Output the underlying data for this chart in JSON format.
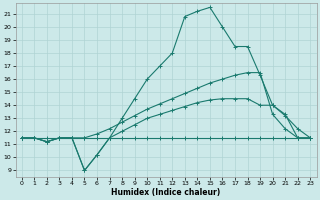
{
  "xlabel": "Humidex (Indice chaleur)",
  "bg_color": "#cce9e9",
  "grid_color": "#b0d4d4",
  "line_color": "#1a7a6e",
  "xlim": [
    -0.5,
    23.5
  ],
  "ylim": [
    8.5,
    21.8
  ],
  "xticks": [
    0,
    1,
    2,
    3,
    4,
    5,
    6,
    7,
    8,
    9,
    10,
    11,
    12,
    13,
    14,
    15,
    16,
    17,
    18,
    19,
    20,
    21,
    22,
    23
  ],
  "yticks": [
    9,
    10,
    11,
    12,
    13,
    14,
    15,
    16,
    17,
    18,
    19,
    20,
    21
  ],
  "lines": [
    {
      "x": [
        0,
        1,
        2,
        3,
        4,
        5,
        6,
        7,
        8,
        9,
        10,
        11,
        12,
        13,
        14,
        15,
        16,
        17,
        18,
        19,
        20,
        21,
        22,
        23
      ],
      "y": [
        11.5,
        11.5,
        11.5,
        11.5,
        11.5,
        11.5,
        11.5,
        11.5,
        11.5,
        11.5,
        11.5,
        11.5,
        11.5,
        11.5,
        11.5,
        11.5,
        11.5,
        11.5,
        11.5,
        11.5,
        11.5,
        11.5,
        11.5,
        11.5
      ]
    },
    {
      "x": [
        0,
        1,
        2,
        3,
        4,
        5,
        6,
        7,
        8,
        9,
        10,
        11,
        12,
        13,
        14,
        15,
        16,
        17,
        18,
        19,
        20,
        21,
        22,
        23
      ],
      "y": [
        11.5,
        11.5,
        11.2,
        11.5,
        11.5,
        9.0,
        10.2,
        11.5,
        12.0,
        12.5,
        13.0,
        13.3,
        13.6,
        13.9,
        14.2,
        14.4,
        14.5,
        14.5,
        14.5,
        14.0,
        14.0,
        13.3,
        11.5,
        11.5
      ]
    },
    {
      "x": [
        0,
        1,
        2,
        3,
        4,
        5,
        6,
        7,
        8,
        9,
        10,
        11,
        12,
        13,
        14,
        15,
        16,
        17,
        18,
        19,
        20,
        21,
        22,
        23
      ],
      "y": [
        11.5,
        11.5,
        11.2,
        11.5,
        11.5,
        11.5,
        11.8,
        12.2,
        12.7,
        13.2,
        13.7,
        14.1,
        14.5,
        14.9,
        15.3,
        15.7,
        16.0,
        16.3,
        16.5,
        16.5,
        13.3,
        12.2,
        11.5,
        11.5
      ]
    },
    {
      "x": [
        0,
        1,
        2,
        3,
        4,
        5,
        6,
        7,
        8,
        9,
        10,
        11,
        12,
        13,
        14,
        15,
        16,
        17,
        18,
        19,
        20,
        21,
        22,
        23
      ],
      "y": [
        11.5,
        11.5,
        11.2,
        11.5,
        11.5,
        9.0,
        10.2,
        11.5,
        13.0,
        14.5,
        16.0,
        17.0,
        18.0,
        20.8,
        21.2,
        21.5,
        20.0,
        18.5,
        18.5,
        16.3,
        14.0,
        13.2,
        12.2,
        11.5
      ]
    }
  ]
}
